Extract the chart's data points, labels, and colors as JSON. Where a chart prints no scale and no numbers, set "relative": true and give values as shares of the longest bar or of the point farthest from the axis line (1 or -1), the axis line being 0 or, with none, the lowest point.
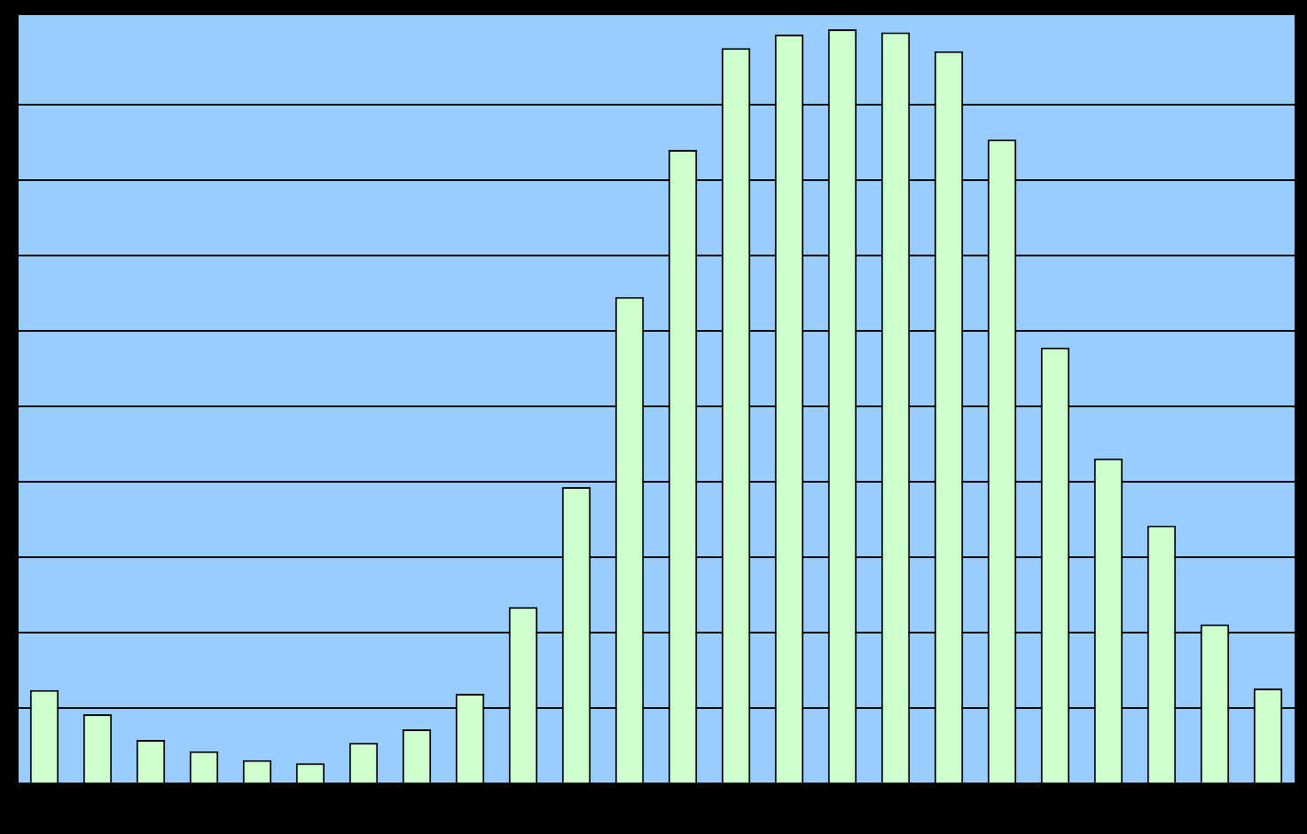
{
  "chart_data": {
    "type": "bar",
    "relative": true,
    "grid": "y",
    "legend": false,
    "categories": [
      null,
      null,
      null,
      null,
      null,
      null,
      null,
      null,
      null,
      null,
      null,
      null,
      null,
      null,
      null,
      null,
      null,
      null,
      null,
      null,
      null,
      null,
      null,
      null
    ],
    "values": [
      0.124,
      0.092,
      0.058,
      0.043,
      0.031,
      0.027,
      0.054,
      0.072,
      0.119,
      0.234,
      0.393,
      0.645,
      0.84,
      0.975,
      0.993,
      1,
      0.996,
      0.971,
      0.854,
      0.578,
      0.431,
      0.342,
      0.211,
      0.126
    ],
    "color": "#ccffcc"
  }
}
